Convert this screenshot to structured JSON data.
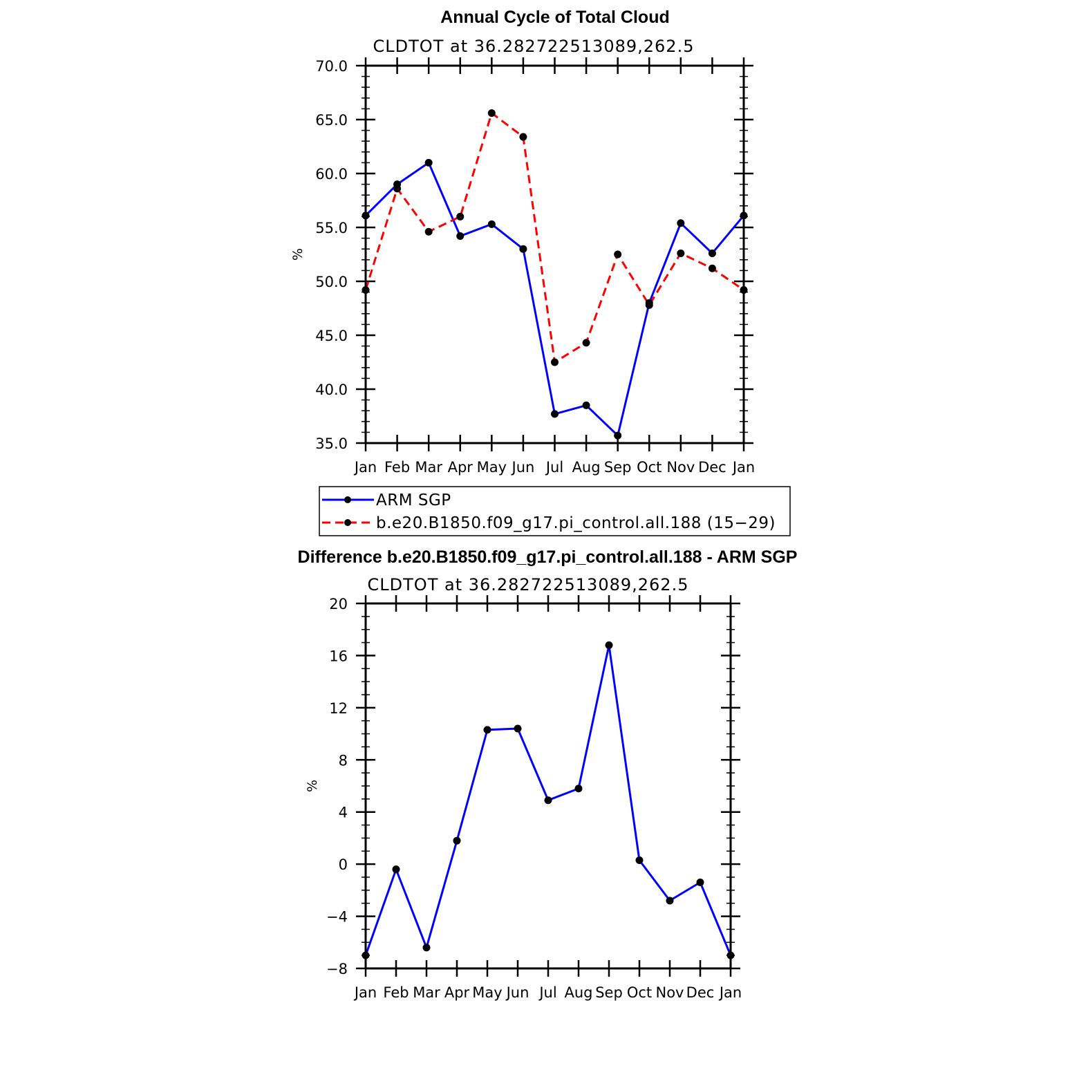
{
  "chart_data": [
    {
      "type": "line",
      "title": "Annual Cycle of Total Cloud",
      "subtitle": "CLDTOT at 36.282722513089,262.5",
      "xlabel": "",
      "ylabel": "%",
      "categories": [
        "Jan",
        "Feb",
        "Mar",
        "Apr",
        "May",
        "Jun",
        "Jul",
        "Aug",
        "Sep",
        "Oct",
        "Nov",
        "Dec",
        "Jan"
      ],
      "ylim": [
        35.0,
        70.0
      ],
      "yticks": [
        "35.0",
        "40.0",
        "45.0",
        "50.0",
        "55.0",
        "60.0",
        "65.0",
        "70.0"
      ],
      "grid": false,
      "series": [
        {
          "name": "ARM SGP",
          "color": "#0000ff",
          "dash": "solid",
          "values": [
            56.1,
            59.0,
            61.0,
            54.2,
            55.3,
            53.0,
            37.7,
            38.5,
            35.7,
            48.0,
            55.4,
            52.6,
            56.1
          ]
        },
        {
          "name": "b.e20.B1850.f09_g17.pi_control.all.188 (15−29)",
          "color": "#ff0000",
          "dash": "dashed",
          "values": [
            49.2,
            58.6,
            54.6,
            56.0,
            65.6,
            63.4,
            42.5,
            44.3,
            52.5,
            47.8,
            52.6,
            51.2,
            49.2
          ]
        }
      ],
      "legend": "bottom"
    },
    {
      "type": "line",
      "title": "Difference b.e20.B1850.f09_g17.pi_control.all.188 - ARM SGP",
      "subtitle": "CLDTOT at 36.282722513089,262.5",
      "xlabel": "",
      "ylabel": "%",
      "categories": [
        "Jan",
        "Feb",
        "Mar",
        "Apr",
        "May",
        "Jun",
        "Jul",
        "Aug",
        "Sep",
        "Oct",
        "Nov",
        "Dec",
        "Jan"
      ],
      "ylim": [
        -8,
        20
      ],
      "yticks": [
        "−8",
        "−4",
        "0",
        "4",
        "8",
        "12",
        "16",
        "20"
      ],
      "grid": false,
      "series": [
        {
          "name": "Difference",
          "color": "#0000ff",
          "dash": "solid",
          "values": [
            -7.0,
            -0.4,
            -6.4,
            1.8,
            10.3,
            10.4,
            4.9,
            5.8,
            16.8,
            0.3,
            -2.8,
            -1.4,
            -7.0
          ]
        }
      ]
    }
  ]
}
